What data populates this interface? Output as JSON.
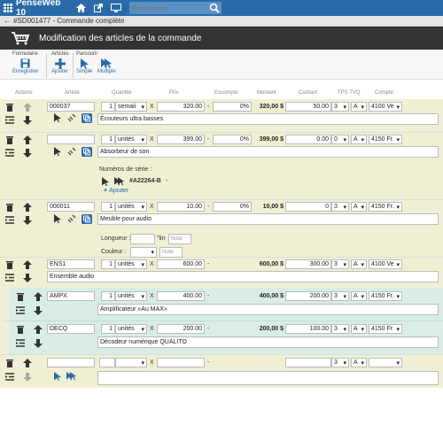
{
  "app": {
    "title": "PenseWeb 10",
    "search_placeholder": "Recherche"
  },
  "breadcrumb": {
    "text": "#SD001477 - Commande complète"
  },
  "header": {
    "title": "Modification des articles de la commande"
  },
  "toolbar": {
    "groups": {
      "formulaire": "Formulaire",
      "articles": "Articles",
      "parcourir": "Parcourir"
    },
    "buttons": {
      "save": "Enregistrer",
      "add": "Ajouter",
      "simple": "Simple",
      "multiple": "Multiple"
    }
  },
  "columns": {
    "actions": "Actions",
    "article": "Article",
    "quantite": "Quantité",
    "prix": "Prix",
    "escompte": "Escompte",
    "montant": "Montant",
    "coutant": "Coûtant",
    "tps_tvq": "TPS TVQ",
    "compte": "Compte"
  },
  "rows": [
    {
      "article": "000037",
      "qty": "1",
      "unit": "semaii",
      "x": "X",
      "price": "320.00",
      "dash": "-",
      "disc": "0%",
      "amount": "320,00 $",
      "cost": "50.00",
      "tps": "3",
      "tvq": "A",
      "account": "4100 Ve",
      "desc": "Écouteurs ultra basses"
    },
    {
      "article": "",
      "qty": "1",
      "unit": "unités",
      "x": "X",
      "price": "399.00",
      "dash": "-",
      "disc": "0%",
      "amount": "399,00 $",
      "cost": "0.00",
      "tps": "0",
      "tvq": "A",
      "account": "4150 Fr.",
      "desc": "Absorbeur de son",
      "serial_label": "Numéros de série :",
      "serial": "#A22264-B",
      "serial_dash": "-",
      "add_label": "Ajouter"
    },
    {
      "article": "000011",
      "qty": "1",
      "unit": "unités",
      "x": "X",
      "price": "10.00",
      "dash": "-",
      "disc": "0%",
      "amount": "10,00 $",
      "cost": "0",
      "tps": "3",
      "tvq": "A",
      "account": "4150 Fr.",
      "desc": "Meuble pour audio",
      "longueur_label": "Longueur :",
      "lin": "\"lin",
      "couleur_label": "Couleur :",
      "note": "Note"
    },
    {
      "article": "ENS1",
      "qty": "1",
      "unit": "unités",
      "x": "X",
      "price": "600.00",
      "dash": "-",
      "amount": "600,00 $",
      "cost": "300.00",
      "tps": "3",
      "tvq": "A",
      "account": "4100 Ve",
      "desc": "Ensemble audio"
    },
    {
      "article": "AMPX",
      "qty": "1",
      "unit": "unités",
      "x": "X",
      "price": "400.00",
      "dash": "-",
      "amount": "400,00 $",
      "cost": "200.00",
      "tps": "3",
      "tvq": "A",
      "account": "4150 Fr.",
      "desc": "Amplificateur «Au MAX»"
    },
    {
      "article": "DECQ",
      "qty": "1",
      "unit": "unités",
      "x": "X",
      "price": "200.00",
      "dash": "-",
      "amount": "200,00 $",
      "cost": "100.00",
      "tps": "3",
      "tvq": "A",
      "account": "4150 Fr.",
      "desc": "Décodeur numérique QUALITO"
    },
    {
      "x": "X",
      "dash": "-",
      "tps": "3",
      "tvq": "A"
    }
  ],
  "colors": {
    "topbar": "#2a6aa8",
    "row_yellow": "#f1efd3",
    "row_green": "#d8ede6",
    "header_dark": "#333333",
    "accent": "#2a6aa8"
  }
}
